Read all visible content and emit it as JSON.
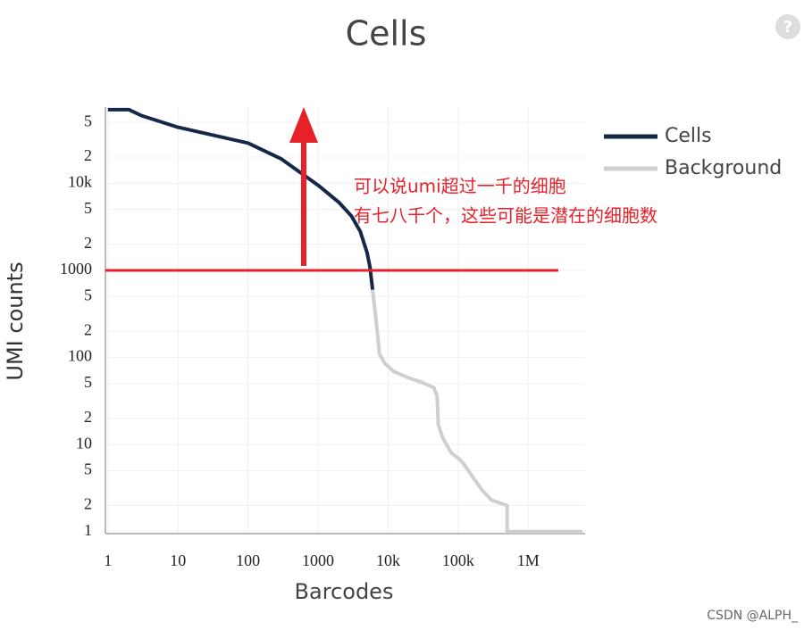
{
  "chart_data": {
    "type": "line",
    "title": "Cells",
    "x_label": "Barcodes",
    "y_label": "UMI counts",
    "log_x": true,
    "log_y": true,
    "grid": true,
    "xlim": [
      0.92,
      6500000
    ],
    "ylim": [
      0.95,
      75000
    ],
    "xticks": [
      1,
      10,
      100,
      1000,
      {
        "value": 10000,
        "label": "10k"
      },
      {
        "value": 100000,
        "label": "100k"
      },
      {
        "value": 1000000,
        "label": "1M"
      }
    ],
    "yticks": [
      1,
      2,
      5,
      10,
      {
        "value": 20,
        "label": "2"
      },
      {
        "value": 50,
        "label": "5"
      },
      100,
      {
        "value": 200,
        "label": "2"
      },
      {
        "value": 500,
        "label": "5"
      },
      1000,
      {
        "value": 2000,
        "label": "2"
      },
      {
        "value": 5000,
        "label": "5"
      },
      {
        "value": 10000,
        "label": "10k"
      },
      {
        "value": 20000,
        "label": "2"
      },
      {
        "value": 50000,
        "label": "5"
      }
    ],
    "legend_position": "right",
    "series": [
      {
        "name": "Cells",
        "color": "#16284a",
        "x": [
          1,
          2,
          3,
          10,
          30,
          100,
          300,
          1000,
          2000,
          3000,
          4000,
          5000,
          5500,
          6000
        ],
        "values": [
          70000,
          70000,
          60000,
          44000,
          36000,
          29000,
          19000,
          9500,
          6000,
          4200,
          2800,
          1600,
          1100,
          600
        ]
      },
      {
        "name": "Background",
        "color": "#cfcfcf",
        "x": [
          6000,
          7000,
          7500,
          9000,
          12000,
          20000,
          30000,
          45000,
          50000,
          52000,
          60000,
          80000,
          100000,
          120000,
          170000,
          220000,
          300000,
          500000,
          500000,
          6000000
        ],
        "values": [
          600,
          200,
          110,
          85,
          69,
          58,
          52,
          45,
          36,
          17,
          12,
          8,
          7,
          6,
          4,
          3,
          2.3,
          2,
          1,
          1
        ]
      }
    ],
    "reference_line": {
      "value": 1000,
      "color": "#e8202a"
    },
    "annotation": [
      "可以说umi超过一千的细胞",
      "有七八千个，这些可能是潜在的细胞数"
    ]
  },
  "help_icon": "?",
  "watermark": "CSDN @ALPH_"
}
